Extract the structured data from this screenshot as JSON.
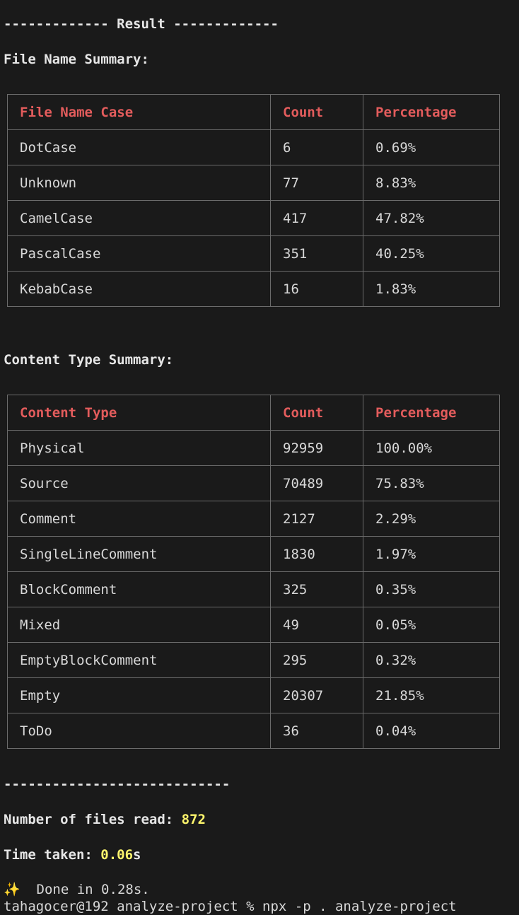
{
  "result_header": "------------- Result -------------",
  "file_name_summary": {
    "title": "File Name Summary:",
    "headers": [
      "File Name Case",
      "Count",
      "Percentage"
    ],
    "rows": [
      [
        "DotCase",
        "6",
        "0.69%"
      ],
      [
        "Unknown",
        "77",
        "8.83%"
      ],
      [
        "CamelCase",
        "417",
        "47.82%"
      ],
      [
        "PascalCase",
        "351",
        "40.25%"
      ],
      [
        "KebabCase",
        "16",
        "1.83%"
      ]
    ]
  },
  "content_type_summary": {
    "title": "Content Type Summary:",
    "headers": [
      "Content Type",
      "Count",
      "Percentage"
    ],
    "rows": [
      [
        "Physical",
        "92959",
        "100.00%"
      ],
      [
        "Source",
        "70489",
        "75.83%"
      ],
      [
        "Comment",
        "2127",
        "2.29%"
      ],
      [
        "SingleLineComment",
        "1830",
        "1.97%"
      ],
      [
        "BlockComment",
        "325",
        "0.35%"
      ],
      [
        "Mixed",
        "49",
        "0.05%"
      ],
      [
        "EmptyBlockComment",
        "295",
        "0.32%"
      ],
      [
        "Empty",
        "20307",
        "21.85%"
      ],
      [
        "ToDo",
        "36",
        "0.04%"
      ]
    ]
  },
  "divider": "----------------------------",
  "stats": {
    "files_label": "Number of files read: ",
    "files_value": "872",
    "time_label": "Time taken: ",
    "time_value": "0.06",
    "time_unit": "s"
  },
  "done": {
    "icon": "sparkles-icon",
    "text": "  Done in 0.28s."
  },
  "prompt_cut": "tahagocer@192 analyze-project % npx -p . analyze-project"
}
